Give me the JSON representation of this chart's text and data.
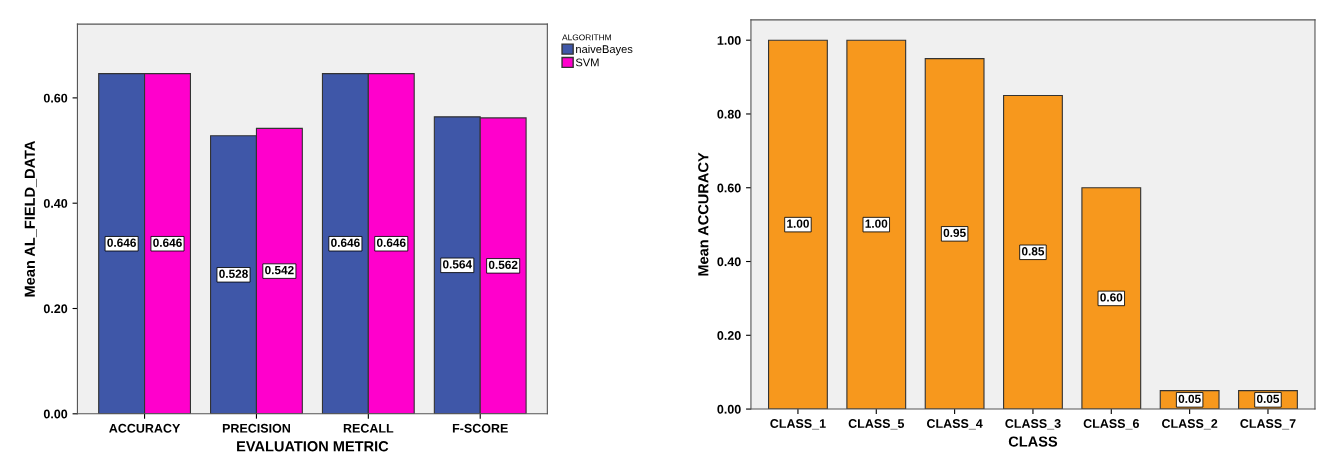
{
  "chart_data": [
    {
      "type": "bar",
      "xlabel": "EVALUATION METRIC",
      "ylabel": "Mean AL_FIELD_DATA",
      "legend_title": "ALGORITHM",
      "categories": [
        "ACCURACY",
        "PRECISION",
        "RECALL",
        "F-SCORE"
      ],
      "series": [
        {
          "name": "naiveBayes",
          "color": "#3f57a8",
          "values": [
            0.646,
            0.528,
            0.646,
            0.564
          ]
        },
        {
          "name": "SVM",
          "color": "#ff00cc",
          "values": [
            0.646,
            0.542,
            0.646,
            0.562
          ]
        }
      ],
      "ylim": [
        0,
        0.74
      ],
      "yticks": [
        {
          "value": 0,
          "label": "0.00"
        },
        {
          "value": 0.2,
          "label": "0.20"
        },
        {
          "value": 0.4,
          "label": "0.40"
        },
        {
          "value": 0.6,
          "label": "0.60"
        }
      ],
      "data_labels": true,
      "legend": "top right",
      "grid": false
    },
    {
      "type": "bar",
      "xlabel": "CLASS",
      "ylabel": "Mean ACCURACY",
      "categories": [
        "CLASS_1",
        "CLASS_5",
        "CLASS_4",
        "CLASS_3",
        "CLASS_6",
        "CLASS_2",
        "CLASS_7"
      ],
      "values": [
        1.0,
        1.0,
        0.95,
        0.85,
        0.6,
        0.05,
        0.05
      ],
      "color": "#f7981d",
      "value_labels": [
        "1.00",
        "1.00",
        "0.95",
        "0.85",
        "0.60",
        "0.05",
        "0.05"
      ],
      "ylim": [
        0,
        1.055
      ],
      "yticks": [
        {
          "value": 0,
          "label": "0.00"
        },
        {
          "value": 0.2,
          "label": "0.20"
        },
        {
          "value": 0.4,
          "label": "0.40"
        },
        {
          "value": 0.6,
          "label": "0.60"
        },
        {
          "value": 0.8,
          "label": "0.80"
        },
        {
          "value": 1.0,
          "label": "1.00"
        }
      ],
      "grid": false
    }
  ]
}
